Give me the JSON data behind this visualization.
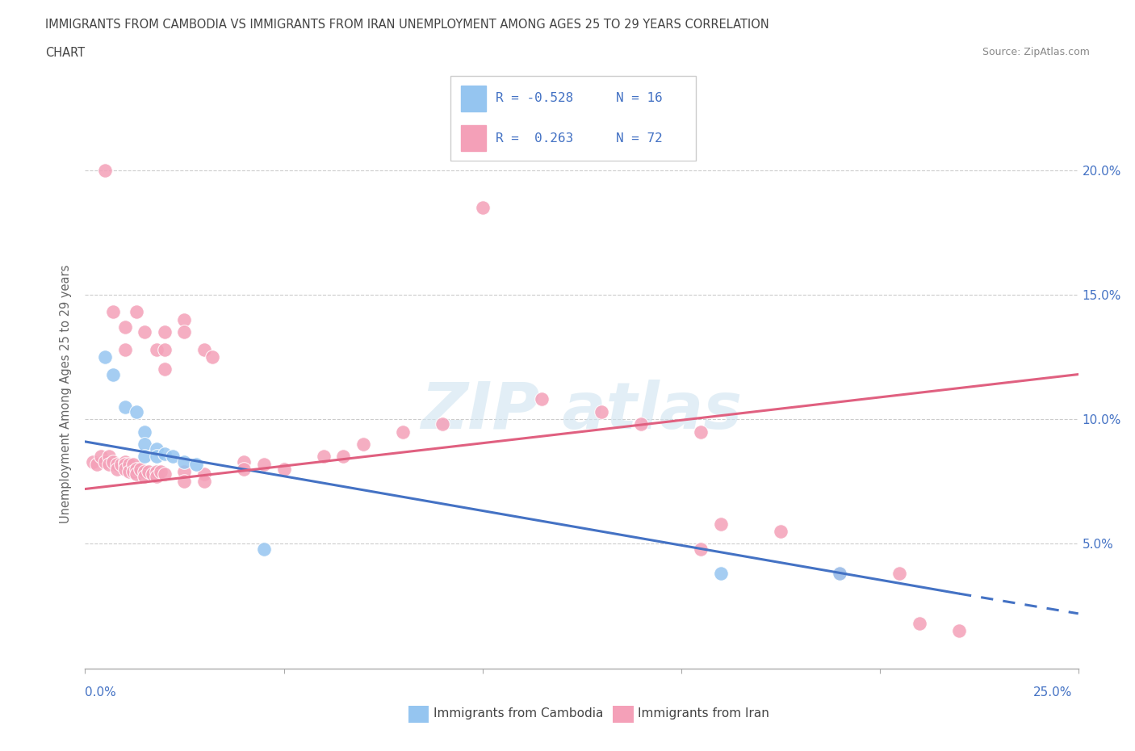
{
  "title_line1": "IMMIGRANTS FROM CAMBODIA VS IMMIGRANTS FROM IRAN UNEMPLOYMENT AMONG AGES 25 TO 29 YEARS CORRELATION",
  "title_line2": "CHART",
  "source": "Source: ZipAtlas.com",
  "ylabel": "Unemployment Among Ages 25 to 29 years",
  "xmin": 0.0,
  "xmax": 0.25,
  "ymin": 0.0,
  "ymax": 0.22,
  "yticks": [
    0.05,
    0.1,
    0.15,
    0.2
  ],
  "ytick_labels": [
    "5.0%",
    "10.0%",
    "15.0%",
    "20.0%"
  ],
  "color_cambodia": "#95c5f0",
  "color_iran": "#f4a0b8",
  "color_blue_line": "#4472c4",
  "color_pink_line": "#e06080",
  "trendline_cambodia": [
    [
      0.0,
      0.091
    ],
    [
      0.22,
      0.03
    ]
  ],
  "trendline_cambodia_ext": [
    [
      0.22,
      0.03
    ],
    [
      0.25,
      0.022
    ]
  ],
  "trendline_iran": [
    [
      0.0,
      0.072
    ],
    [
      0.25,
      0.118
    ]
  ],
  "cambodia_scatter": [
    [
      0.005,
      0.125
    ],
    [
      0.007,
      0.118
    ],
    [
      0.01,
      0.105
    ],
    [
      0.013,
      0.103
    ],
    [
      0.015,
      0.095
    ],
    [
      0.015,
      0.09
    ],
    [
      0.015,
      0.085
    ],
    [
      0.018,
      0.088
    ],
    [
      0.018,
      0.085
    ],
    [
      0.02,
      0.086
    ],
    [
      0.022,
      0.085
    ],
    [
      0.025,
      0.083
    ],
    [
      0.028,
      0.082
    ],
    [
      0.045,
      0.048
    ],
    [
      0.16,
      0.038
    ],
    [
      0.19,
      0.038
    ]
  ],
  "iran_scatter": [
    [
      0.005,
      0.2
    ],
    [
      0.007,
      0.143
    ],
    [
      0.01,
      0.137
    ],
    [
      0.01,
      0.128
    ],
    [
      0.015,
      0.135
    ],
    [
      0.013,
      0.143
    ],
    [
      0.018,
      0.128
    ],
    [
      0.02,
      0.135
    ],
    [
      0.02,
      0.128
    ],
    [
      0.02,
      0.12
    ],
    [
      0.025,
      0.14
    ],
    [
      0.025,
      0.135
    ],
    [
      0.03,
      0.128
    ],
    [
      0.032,
      0.125
    ],
    [
      0.002,
      0.083
    ],
    [
      0.003,
      0.082
    ],
    [
      0.004,
      0.085
    ],
    [
      0.005,
      0.083
    ],
    [
      0.006,
      0.085
    ],
    [
      0.006,
      0.082
    ],
    [
      0.007,
      0.083
    ],
    [
      0.008,
      0.082
    ],
    [
      0.008,
      0.08
    ],
    [
      0.009,
      0.082
    ],
    [
      0.01,
      0.083
    ],
    [
      0.01,
      0.082
    ],
    [
      0.01,
      0.08
    ],
    [
      0.011,
      0.082
    ],
    [
      0.011,
      0.079
    ],
    [
      0.012,
      0.082
    ],
    [
      0.012,
      0.079
    ],
    [
      0.013,
      0.08
    ],
    [
      0.013,
      0.078
    ],
    [
      0.014,
      0.08
    ],
    [
      0.015,
      0.079
    ],
    [
      0.015,
      0.077
    ],
    [
      0.016,
      0.079
    ],
    [
      0.017,
      0.078
    ],
    [
      0.018,
      0.079
    ],
    [
      0.018,
      0.077
    ],
    [
      0.019,
      0.079
    ],
    [
      0.02,
      0.078
    ],
    [
      0.025,
      0.079
    ],
    [
      0.025,
      0.075
    ],
    [
      0.03,
      0.078
    ],
    [
      0.03,
      0.075
    ],
    [
      0.04,
      0.083
    ],
    [
      0.04,
      0.08
    ],
    [
      0.045,
      0.082
    ],
    [
      0.05,
      0.08
    ],
    [
      0.06,
      0.085
    ],
    [
      0.065,
      0.085
    ],
    [
      0.07,
      0.09
    ],
    [
      0.08,
      0.095
    ],
    [
      0.09,
      0.098
    ],
    [
      0.1,
      0.185
    ],
    [
      0.115,
      0.108
    ],
    [
      0.13,
      0.103
    ],
    [
      0.14,
      0.098
    ],
    [
      0.155,
      0.095
    ],
    [
      0.155,
      0.048
    ],
    [
      0.16,
      0.058
    ],
    [
      0.175,
      0.055
    ],
    [
      0.19,
      0.038
    ],
    [
      0.205,
      0.038
    ],
    [
      0.21,
      0.018
    ],
    [
      0.22,
      0.015
    ]
  ]
}
